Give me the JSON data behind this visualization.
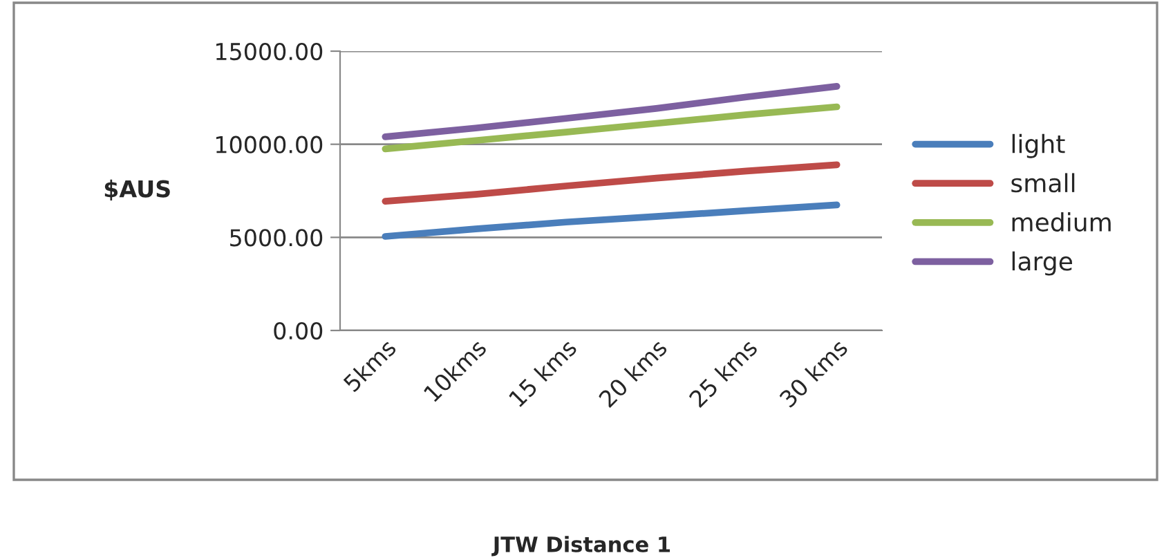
{
  "chart_data": {
    "type": "line",
    "title": "JTW Distance 1",
    "ylabel": "$AUS",
    "categories": [
      "5kms",
      "10kms",
      "15 kms",
      "20 kms",
      "25 kms",
      "30 kms"
    ],
    "series": [
      {
        "name": "light",
        "color": "#4a7ebb",
        "values": [
          5050,
          5450,
          5820,
          6120,
          6440,
          6740
        ]
      },
      {
        "name": "small",
        "color": "#be4b48",
        "values": [
          6940,
          7310,
          7760,
          8180,
          8560,
          8900
        ]
      },
      {
        "name": "medium",
        "color": "#98b954",
        "values": [
          9750,
          10200,
          10650,
          11120,
          11590,
          12010
        ]
      },
      {
        "name": "large",
        "color": "#7d60a0",
        "values": [
          10400,
          10870,
          11390,
          11920,
          12540,
          13110
        ]
      }
    ],
    "ylim": [
      0,
      15000
    ],
    "yticks": [
      {
        "value": 0,
        "label": "0.00"
      },
      {
        "value": 5000,
        "label": "5000.00"
      },
      {
        "value": 10000,
        "label": "10000.00"
      },
      {
        "value": 15000,
        "label": "15000.00"
      }
    ],
    "grid": "y",
    "legend": "right",
    "marker": "none",
    "line_style": "solid"
  }
}
